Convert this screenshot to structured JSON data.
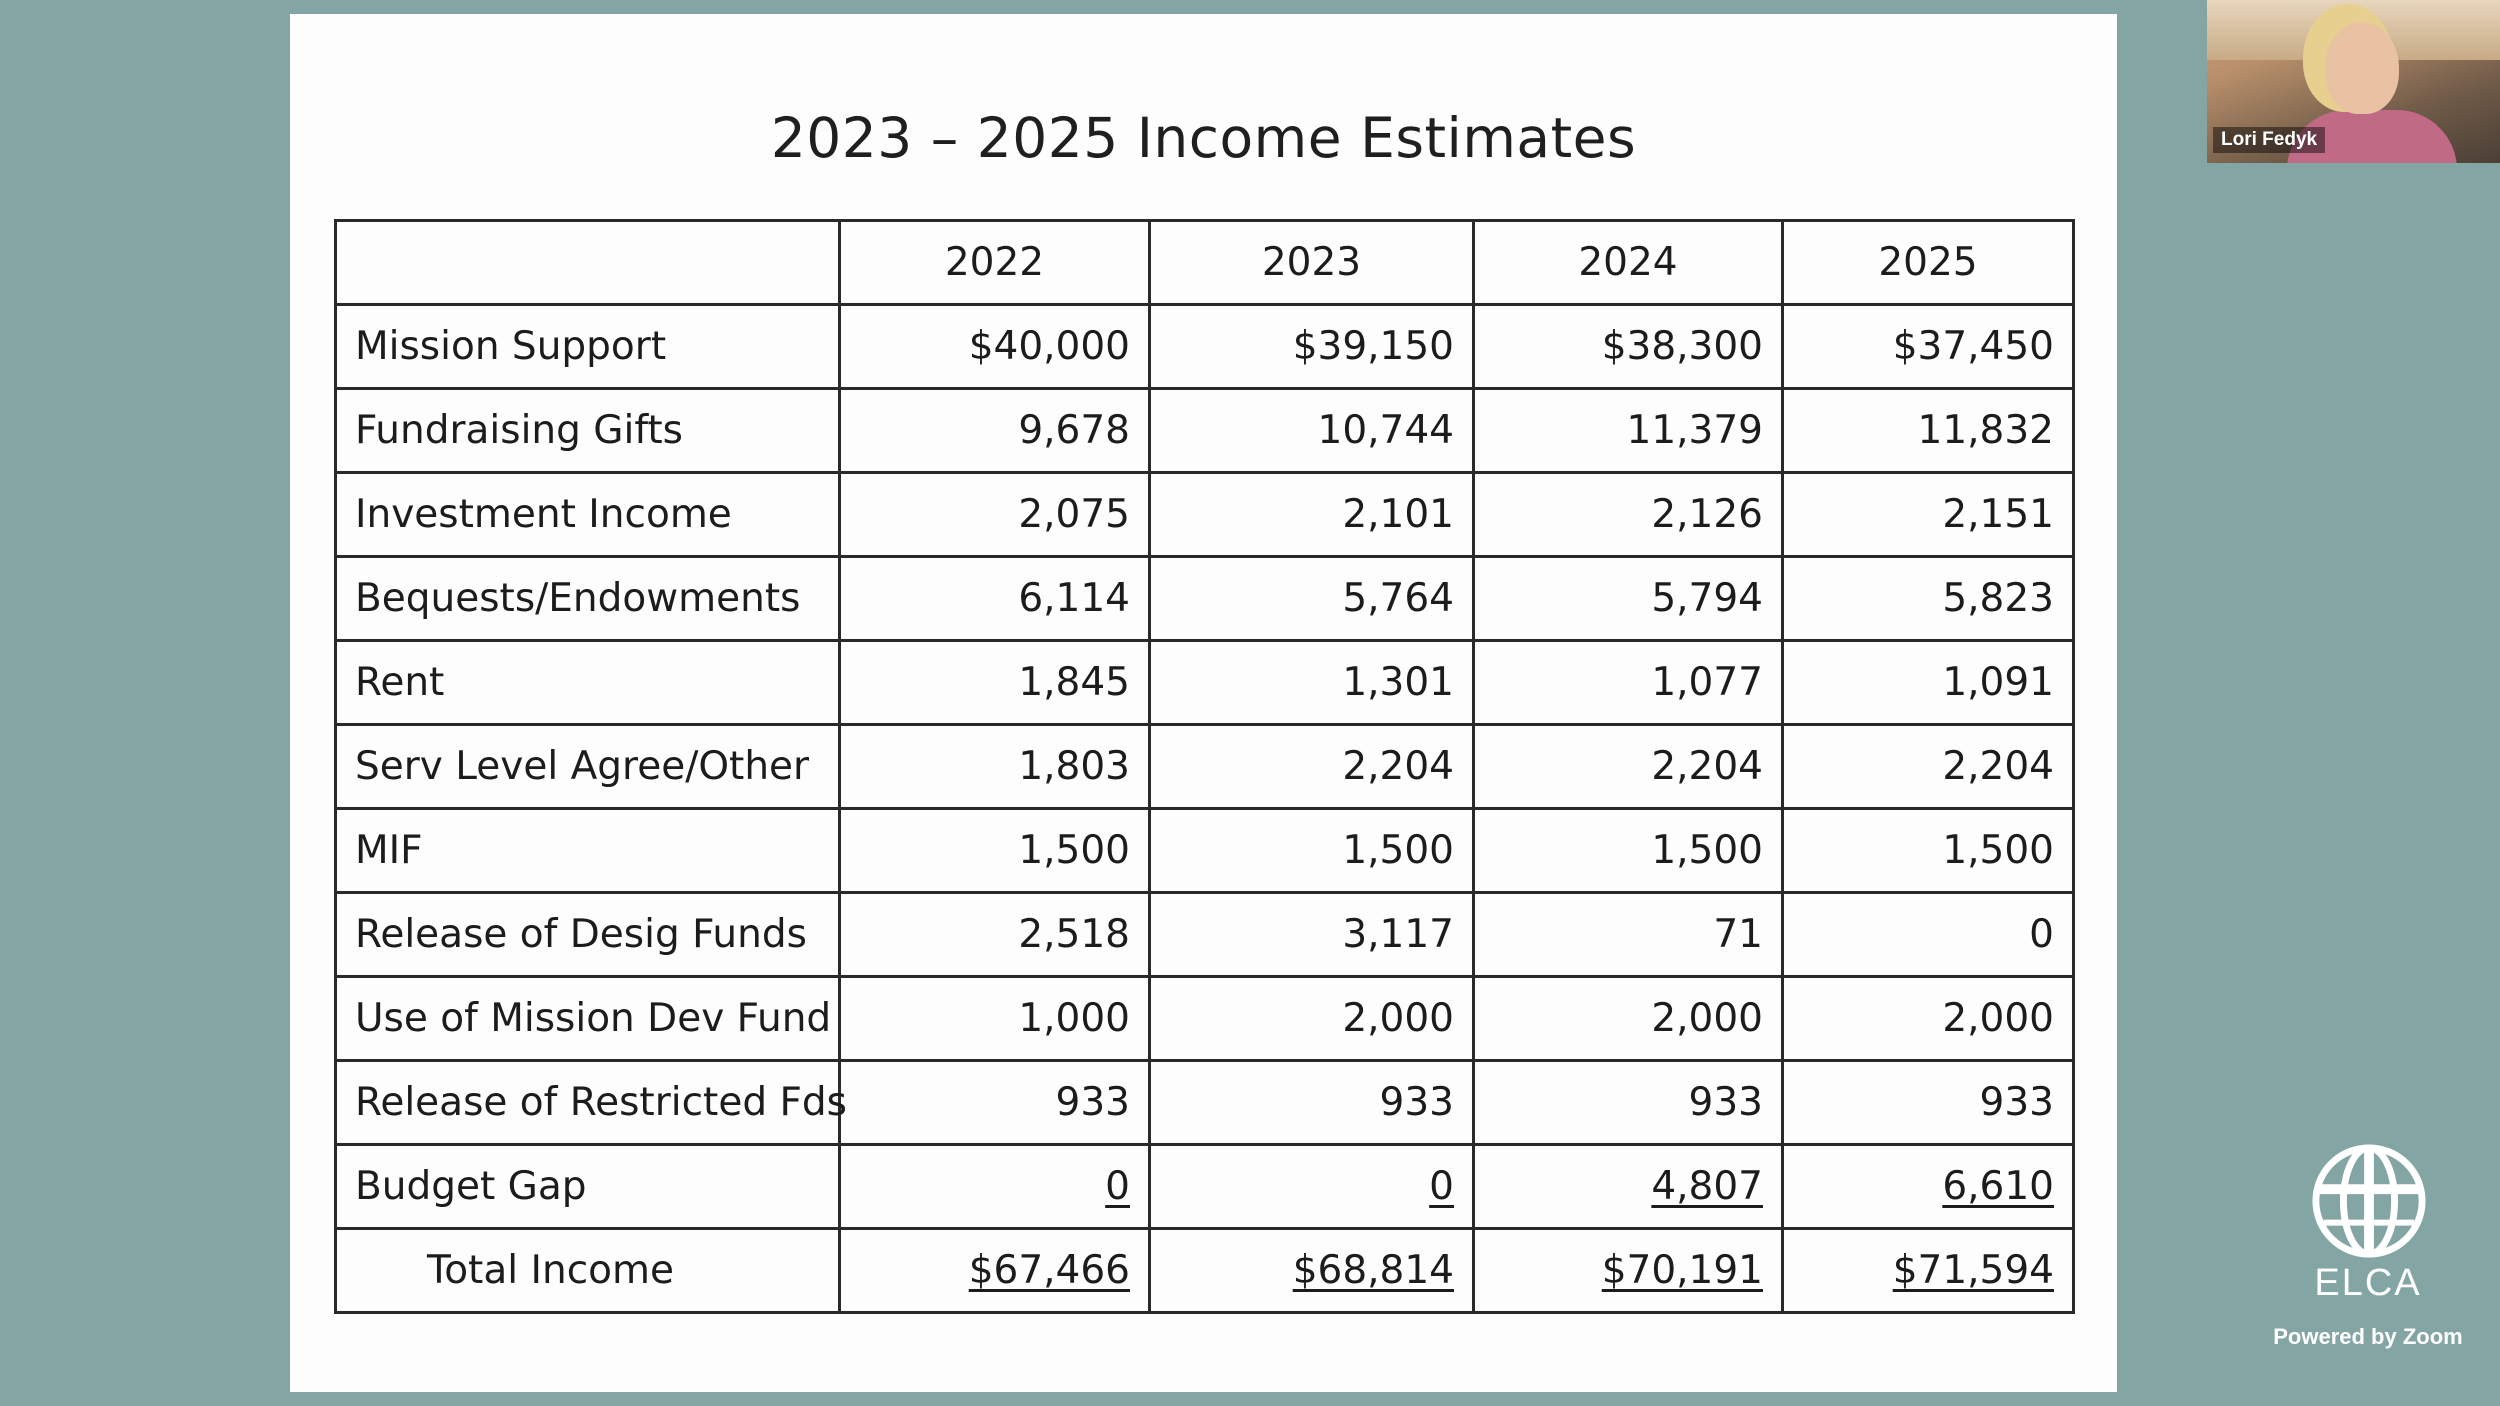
{
  "slide": {
    "title": "2023 – 2025 Income Estimates",
    "header_empty": "",
    "columns": [
      "2022",
      "2023",
      "2024",
      "2025"
    ],
    "rows": [
      {
        "label": "Mission Support",
        "values": [
          "$40,000",
          "$39,150",
          "$38,300",
          "$37,450"
        ]
      },
      {
        "label": "Fundraising Gifts",
        "values": [
          "9,678",
          "10,744",
          "11,379",
          "11,832"
        ]
      },
      {
        "label": "Investment Income",
        "values": [
          "2,075",
          "2,101",
          "2,126",
          "2,151"
        ]
      },
      {
        "label": "Bequests/Endowments",
        "values": [
          "6,114",
          "5,764",
          "5,794",
          "5,823"
        ]
      },
      {
        "label": "Rent",
        "values": [
          "1,845",
          "1,301",
          "1,077",
          "1,091"
        ]
      },
      {
        "label": "Serv Level Agree/Other",
        "values": [
          "1,803",
          "2,204",
          "2,204",
          "2,204"
        ]
      },
      {
        "label": "MIF",
        "values": [
          "1,500",
          "1,500",
          "1,500",
          "1,500"
        ]
      },
      {
        "label": "Release of Desig Funds",
        "values": [
          "2,518",
          "3,117",
          "71",
          "0"
        ]
      },
      {
        "label": "Use of Mission Dev Fund",
        "values": [
          "1,000",
          "2,000",
          "2,000",
          "2,000"
        ]
      },
      {
        "label": "Release of Restricted Fds",
        "values": [
          "933",
          "933",
          "933",
          "933"
        ]
      },
      {
        "label": "Budget Gap",
        "values": [
          "0",
          "0",
          "4,807",
          "6,610"
        ]
      }
    ],
    "total": {
      "label": "Total Income",
      "values": [
        "$67,466",
        "$68,814",
        "$70,191",
        "$71,594"
      ]
    }
  },
  "participant": {
    "name": "Lori Fedyk"
  },
  "branding": {
    "org_name": "ELCA",
    "powered_by": "Powered by Zoom",
    "logo_icon": "elca-cross-globe-icon"
  },
  "colors": {
    "background": "#83a6a5",
    "slide": "#fdfdfd",
    "table_border": "#2a2a2a"
  }
}
